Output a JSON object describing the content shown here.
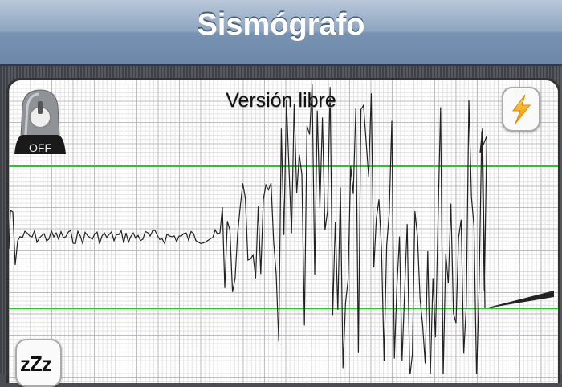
{
  "header": {
    "title": "Sismógrafo"
  },
  "main": {
    "version_label": "Versión libre",
    "alarm_button": {
      "label": "OFF",
      "icon": "alarm-beacon-icon",
      "state": "off"
    },
    "power_button": {
      "icon": "lightning-bolt-icon"
    },
    "sleep_button": {
      "label": "zZz",
      "icon": "sleep-icon"
    },
    "threshold_color": "#22cc22",
    "trace_color": "#222222"
  }
}
